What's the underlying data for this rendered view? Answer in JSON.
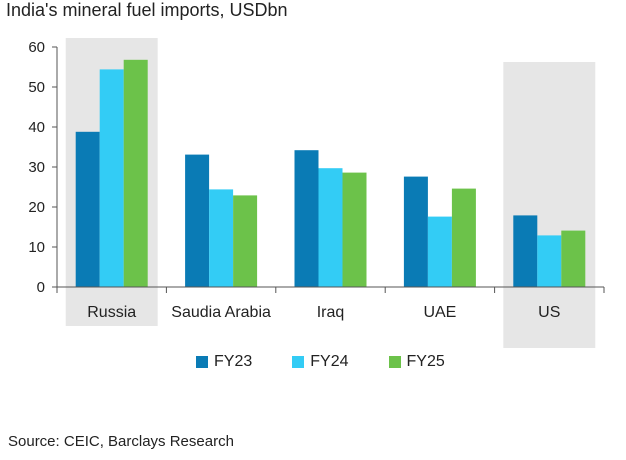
{
  "chart_data": {
    "type": "bar",
    "title": "India's mineral fuel imports, USDbn",
    "categories": [
      "Russia",
      "Saudia Arabia",
      "Iraq",
      "UAE",
      "US"
    ],
    "highlighted_categories": [
      "Russia",
      "US"
    ],
    "highlight_color": "#e6e6e6",
    "series": [
      {
        "name": "FY23",
        "color": "#0a7bb5",
        "values": [
          38.8,
          33.1,
          34.2,
          27.6,
          17.9
        ]
      },
      {
        "name": "FY24",
        "color": "#33ccf5",
        "values": [
          54.4,
          24.4,
          29.7,
          17.6,
          12.9
        ]
      },
      {
        "name": "FY25",
        "color": "#6cc24a",
        "values": [
          56.8,
          22.9,
          28.6,
          24.6,
          14.1
        ]
      }
    ],
    "y_ticks": [
      "0",
      "10",
      "20",
      "30",
      "40",
      "50",
      "60"
    ],
    "ylim": [
      0,
      60
    ],
    "legend_position": "bottom",
    "grid": false,
    "source": "Source: CEIC, Barclays Research"
  }
}
